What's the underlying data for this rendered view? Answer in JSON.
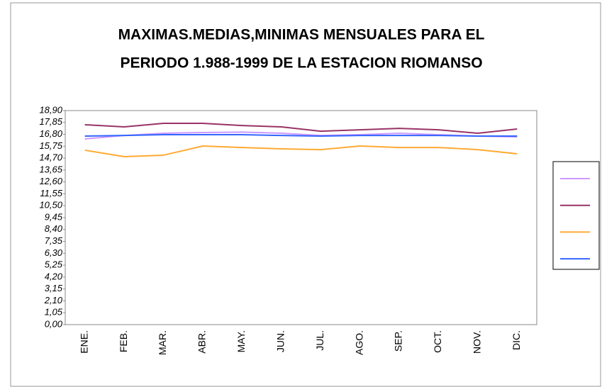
{
  "chart_data": {
    "type": "line",
    "title": [
      "MAXIMAS.MEDIAS,MINIMAS MENSUALES  PARA EL",
      "PERIODO 1.988-1999 DE LA ESTACION RIOMANSO"
    ],
    "categories": [
      "ENE.",
      "FEB.",
      "MAR.",
      "ABR.",
      "MAY.",
      "JUN.",
      "JUL.",
      "AGO.",
      "SEP.",
      "OCT.",
      "NOV.",
      "DIC."
    ],
    "series": [
      {
        "color": "#cc99ff",
        "values": [
          16.4,
          16.7,
          16.9,
          16.96,
          17.0,
          16.9,
          16.7,
          16.77,
          16.9,
          16.77,
          16.65,
          16.58
        ]
      },
      {
        "color": "#993366",
        "values": [
          17.65,
          17.46,
          17.77,
          17.77,
          17.58,
          17.46,
          17.08,
          17.2,
          17.33,
          17.2,
          16.9,
          17.27
        ]
      },
      {
        "color": "#ffaa33",
        "values": [
          15.4,
          14.83,
          14.96,
          15.77,
          15.64,
          15.52,
          15.45,
          15.77,
          15.64,
          15.64,
          15.45,
          15.08
        ]
      },
      {
        "color": "#3366ff",
        "values": [
          16.65,
          16.7,
          16.77,
          16.77,
          16.77,
          16.7,
          16.65,
          16.7,
          16.7,
          16.7,
          16.65,
          16.65
        ]
      }
    ],
    "ylim": [
      0,
      18.9
    ],
    "yticks": [
      {
        "value": 0,
        "label": "0,00"
      },
      {
        "value": 1.05,
        "label": "1,05"
      },
      {
        "value": 2.1,
        "label": "2,10"
      },
      {
        "value": 3.15,
        "label": "3,15"
      },
      {
        "value": 4.2,
        "label": "4,20"
      },
      {
        "value": 5.25,
        "label": "5,25"
      },
      {
        "value": 6.3,
        "label": "6,30"
      },
      {
        "value": 7.35,
        "label": "7,35"
      },
      {
        "value": 8.4,
        "label": "8,40"
      },
      {
        "value": 9.45,
        "label": "9,45"
      },
      {
        "value": 10.5,
        "label": "10,50"
      },
      {
        "value": 11.55,
        "label": "11,55"
      },
      {
        "value": 12.6,
        "label": "12,60"
      },
      {
        "value": 13.65,
        "label": "13,65"
      },
      {
        "value": 14.7,
        "label": "14,70"
      },
      {
        "value": 15.75,
        "label": "15,75"
      },
      {
        "value": 16.8,
        "label": "16,80"
      },
      {
        "value": 17.85,
        "label": "17,85"
      },
      {
        "value": 18.9,
        "label": "18,90"
      }
    ],
    "grid": false,
    "legend": "right"
  }
}
